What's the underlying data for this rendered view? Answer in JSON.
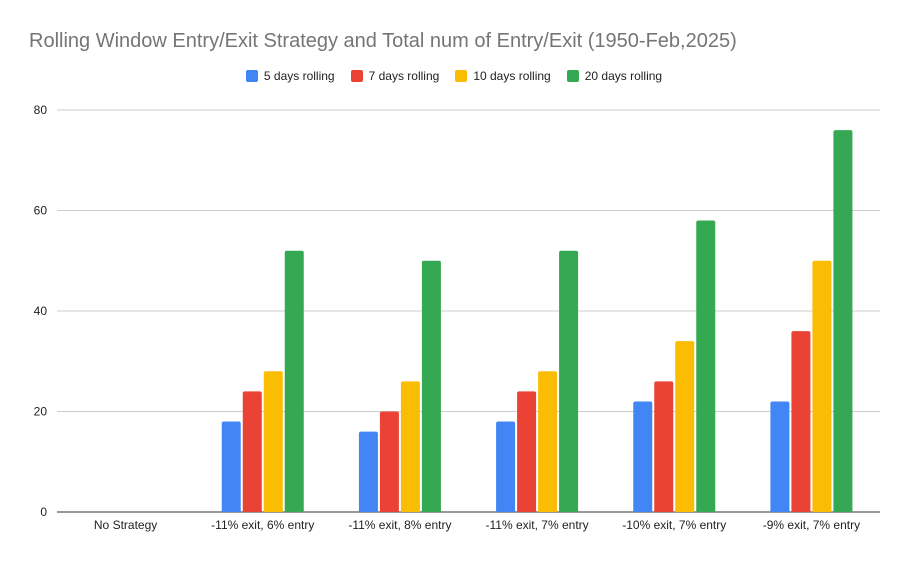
{
  "chart_data": {
    "type": "bar",
    "title": "Rolling Window Entry/Exit Strategy and Total num of Entry/Exit (1950-Feb,2025)",
    "xlabel": "",
    "ylabel": "",
    "categories": [
      "No Strategy",
      "-11% exit, 6% entry",
      "-11% exit, 8% entry",
      "-11% exit, 7% entry",
      "-10% exit, 7% entry",
      "-9% exit, 7% entry"
    ],
    "series": [
      {
        "name": "5 days rolling",
        "color": "#4285f4",
        "values": [
          0,
          18,
          16,
          18,
          22,
          22
        ]
      },
      {
        "name": "7 days rolling",
        "color": "#ea4335",
        "values": [
          0,
          24,
          20,
          24,
          26,
          36
        ]
      },
      {
        "name": "10 days rolling",
        "color": "#fbbc04",
        "values": [
          0,
          28,
          26,
          28,
          34,
          50
        ]
      },
      {
        "name": "20 days rolling",
        "color": "#34a853",
        "values": [
          0,
          52,
          50,
          52,
          58,
          76
        ]
      }
    ],
    "ylim": [
      0,
      80
    ],
    "yticks": [
      0,
      20,
      40,
      60,
      80
    ],
    "grid": true,
    "legend": "top-center"
  }
}
